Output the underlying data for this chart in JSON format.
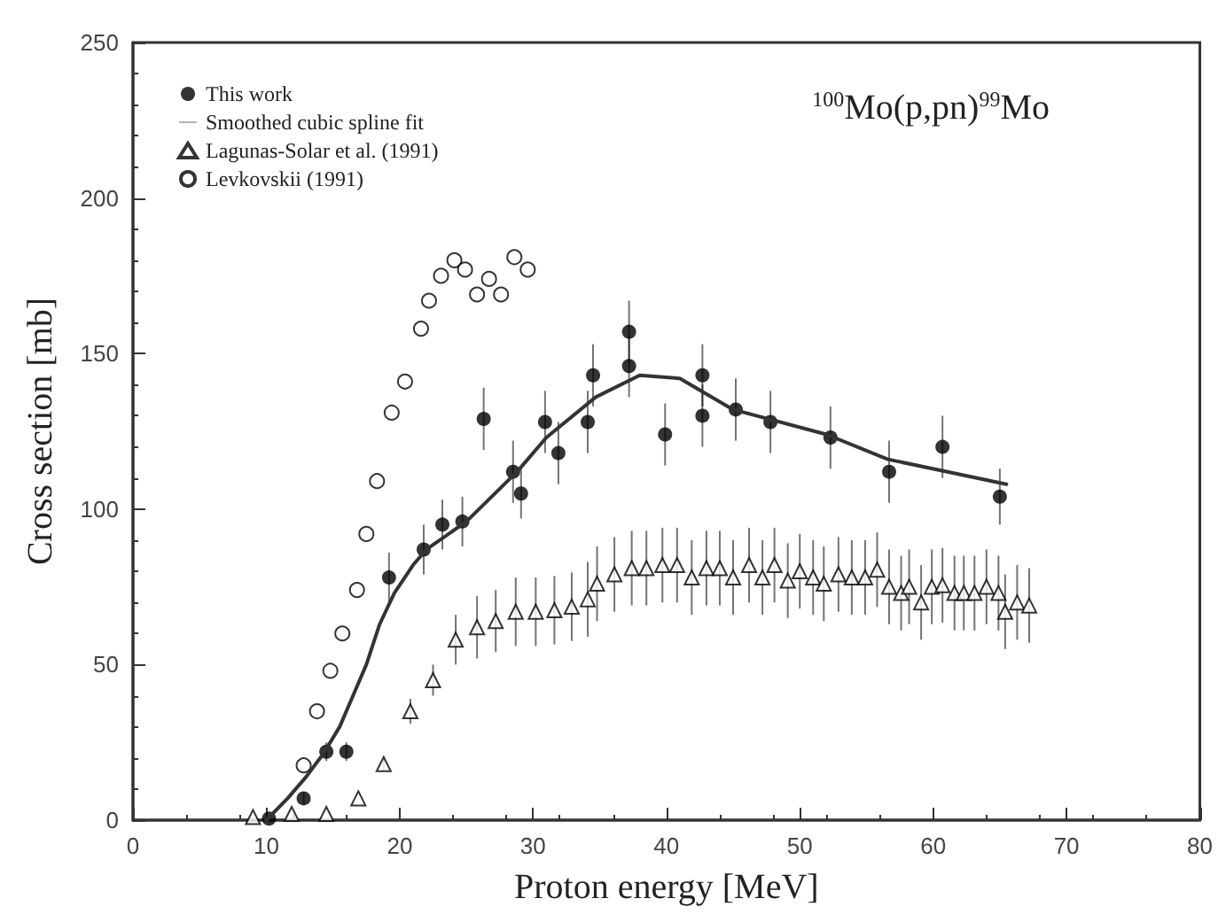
{
  "chart_data": {
    "type": "scatter",
    "xlabel": "Proton energy [MeV]",
    "ylabel": "Cross section [mb]",
    "annotations": [
      "$^{100}$Mo(p,pn)$^{99}$Mo"
    ],
    "xlim": [
      0,
      80
    ],
    "xticks": [
      0,
      10,
      20,
      30,
      40,
      50,
      60,
      70,
      80
    ],
    "ylim": [
      0,
      250
    ],
    "yticks": [
      0,
      50,
      100,
      150,
      200,
      250
    ],
    "grid": false,
    "legend": "top left",
    "series": [
      {
        "name": "This work",
        "marker": "circle",
        "color": "#000000",
        "x": [
          10.2,
          12.8,
          14.5,
          16,
          19.2,
          21.8,
          23.2,
          24.7,
          26.3,
          28.5,
          29.1,
          30.9,
          31.9,
          34.1,
          34.5,
          37.2,
          37.2,
          39.9,
          42.7,
          42.7,
          45.2,
          47.8,
          52.3,
          56.7,
          60.7,
          65
        ],
        "values": [
          0.5,
          7,
          22,
          22,
          78,
          87,
          95,
          96,
          129,
          112,
          105,
          128,
          118,
          128,
          143,
          146,
          157,
          124,
          143,
          130,
          132,
          128,
          123,
          112,
          120,
          104
        ],
        "errors": [
          null,
          2,
          3,
          3,
          8,
          8,
          8,
          8,
          10,
          10,
          8,
          10,
          10,
          10,
          10,
          10,
          10,
          10,
          10,
          10,
          10,
          10,
          10,
          10,
          10,
          9
        ]
      },
      {
        "name": "Smoothed cubic spline fit",
        "type": "line",
        "marker": "none",
        "line_style": "solid",
        "color": "#333333",
        "x": [
          10,
          11.6,
          13,
          14.3,
          15.5,
          16.5,
          17.5,
          18.5,
          19.6,
          21,
          22,
          25,
          28.8,
          31,
          34.7,
          38,
          41,
          45,
          52,
          56.6,
          65.5
        ],
        "values": [
          0,
          7,
          14,
          21.5,
          30,
          40,
          50,
          63,
          73,
          82,
          87,
          96,
          112,
          123,
          136,
          143,
          142,
          132,
          124,
          116,
          108
        ]
      },
      {
        "name": "Lagunas-Solar et al. (1991)",
        "marker": "triangle",
        "color": "#000000",
        "x": [
          9,
          11.9,
          14.5,
          16.9,
          18.8,
          20.8,
          22.5,
          24.2,
          25.8,
          27.2,
          28.7,
          30.2,
          31.6,
          32.9,
          34.1,
          34.8,
          36.1,
          37.4,
          38.5,
          39.7,
          40.8,
          41.9,
          43,
          44,
          45,
          46.2,
          47.2,
          48.1,
          49.1,
          50,
          51,
          51.8,
          52.9,
          53.9,
          54.9,
          55.8,
          56.7,
          57.6,
          58.2,
          59.1,
          59.9,
          60.7,
          61.6,
          62.3,
          63.1,
          64,
          64.9,
          65.4,
          66.3,
          67.2
        ],
        "values": [
          1,
          2,
          2,
          7,
          18,
          35,
          45,
          58,
          62,
          64,
          67,
          67,
          67.5,
          68.6,
          71,
          76,
          79,
          81,
          81,
          82,
          82,
          78,
          81,
          81,
          78,
          82,
          78,
          82,
          77,
          80,
          78,
          76,
          79,
          78,
          78,
          80.5,
          75,
          73,
          75,
          70,
          75,
          75.5,
          73,
          73,
          73,
          75,
          73,
          67,
          70,
          69
        ],
        "errors": [
          null,
          null,
          null,
          null,
          2,
          4,
          5,
          8,
          10,
          10,
          11,
          11,
          11,
          11,
          12,
          12,
          12,
          12,
          12,
          12,
          12,
          12,
          12,
          12,
          12,
          12,
          12,
          12,
          12,
          12,
          12,
          12,
          12,
          12,
          12,
          12,
          12,
          12,
          12,
          12,
          12,
          12,
          12,
          12,
          12,
          12,
          12,
          12,
          12,
          12
        ]
      },
      {
        "name": "Levkovskii (1991)",
        "marker": "circle",
        "color": "#000000",
        "x": [
          12.8,
          13.8,
          14.8,
          15.7,
          16.8,
          17.5,
          18.3,
          19.4,
          20.4,
          21.6,
          22.2,
          23.1,
          24.1,
          24.9,
          25.8,
          26.7,
          27.6,
          28.6,
          29.6
        ],
        "values": [
          17.6,
          35,
          48,
          60,
          74,
          92,
          109,
          131,
          141,
          158,
          167,
          175,
          180,
          177,
          169,
          174,
          169,
          181,
          177
        ]
      }
    ]
  }
}
